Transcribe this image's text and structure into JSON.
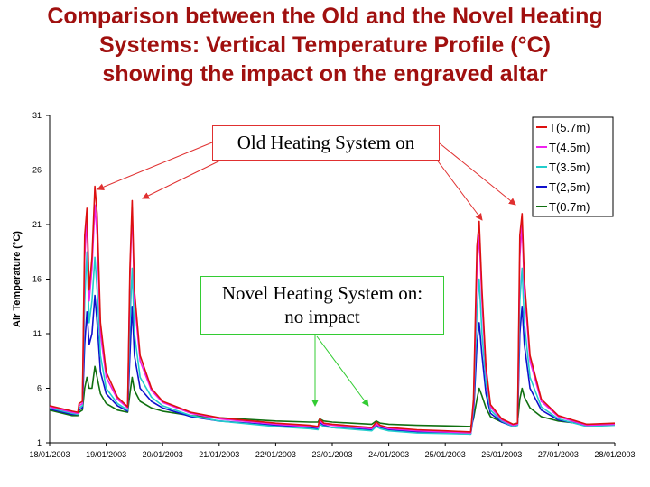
{
  "title": {
    "line1": "Comparison between the Old and the Novel Heating",
    "line2": "Systems: Vertical Temperature Profile (°C)",
    "line3": "showing the impact on the engraved altar"
  },
  "annotations": {
    "old": "Old Heating System on",
    "novel_line1": "Novel Heating System on:",
    "novel_line2": "no impact"
  },
  "colors": {
    "title": "#a0100f",
    "old_box_border": "#e03030",
    "old_arrow": "#e03030",
    "novel_box_border": "#33cc33",
    "novel_arrow": "#33cc33"
  },
  "chart_data": {
    "type": "line",
    "ylabel": "Air Temperature (°C)",
    "ylim": [
      1,
      31
    ],
    "yticks": [
      "1",
      "6",
      "11",
      "16",
      "21",
      "26",
      "31"
    ],
    "xlim": [
      0,
      10
    ],
    "xticks": [
      "18/01/2003",
      "19/01/2003",
      "20/01/2003",
      "21/01/2003",
      "22/01/2003",
      "23/01/2003",
      "24/01/2003",
      "25/01/2003",
      "26/01/2003",
      "27/01/2003",
      "28/01/2003"
    ],
    "grid": false,
    "legend_position": "top-right",
    "series": [
      {
        "name": "T(5.7m)",
        "color": "#dd1010",
        "points": [
          [
            0,
            4.4
          ],
          [
            0.4,
            3.9
          ],
          [
            0.5,
            3.8
          ],
          [
            0.52,
            4.6
          ],
          [
            0.58,
            4.8
          ],
          [
            0.62,
            20
          ],
          [
            0.66,
            22.5
          ],
          [
            0.7,
            15
          ],
          [
            0.75,
            18
          ],
          [
            0.8,
            24.5
          ],
          [
            0.84,
            22
          ],
          [
            0.9,
            12
          ],
          [
            1,
            7.5
          ],
          [
            1.2,
            5.2
          ],
          [
            1.38,
            4.3
          ],
          [
            1.42,
            17
          ],
          [
            1.46,
            23.2
          ],
          [
            1.5,
            15
          ],
          [
            1.6,
            9
          ],
          [
            1.8,
            6
          ],
          [
            2,
            4.8
          ],
          [
            2.5,
            3.8
          ],
          [
            3,
            3.3
          ],
          [
            4,
            2.8
          ],
          [
            4.6,
            2.6
          ],
          [
            4.75,
            2.5
          ],
          [
            4.78,
            3.2
          ],
          [
            4.85,
            2.8
          ],
          [
            5,
            2.7
          ],
          [
            5.7,
            2.4
          ],
          [
            5.78,
            2.9
          ],
          [
            5.85,
            2.6
          ],
          [
            6,
            2.4
          ],
          [
            6.5,
            2.2
          ],
          [
            7,
            2.1
          ],
          [
            7.45,
            2.0
          ],
          [
            7.5,
            5
          ],
          [
            7.56,
            19
          ],
          [
            7.6,
            21.3
          ],
          [
            7.65,
            15
          ],
          [
            7.72,
            8
          ],
          [
            7.8,
            4.5
          ],
          [
            8,
            3.2
          ],
          [
            8.2,
            2.7
          ],
          [
            8.28,
            2.8
          ],
          [
            8.32,
            20
          ],
          [
            8.36,
            22
          ],
          [
            8.4,
            16
          ],
          [
            8.5,
            9
          ],
          [
            8.7,
            5
          ],
          [
            9,
            3.5
          ],
          [
            9.5,
            2.7
          ],
          [
            10,
            2.8
          ]
        ]
      },
      {
        "name": "T(4.5m)",
        "color": "#ee22ee",
        "points": [
          [
            0,
            4.3
          ],
          [
            0.4,
            3.8
          ],
          [
            0.5,
            3.7
          ],
          [
            0.52,
            4.4
          ],
          [
            0.58,
            4.6
          ],
          [
            0.62,
            18
          ],
          [
            0.66,
            21.5
          ],
          [
            0.7,
            14
          ],
          [
            0.75,
            17
          ],
          [
            0.8,
            22.8
          ],
          [
            0.84,
            20
          ],
          [
            0.9,
            11
          ],
          [
            1,
            7
          ],
          [
            1.2,
            5
          ],
          [
            1.38,
            4.2
          ],
          [
            1.42,
            16
          ],
          [
            1.46,
            22.5
          ],
          [
            1.5,
            14
          ],
          [
            1.6,
            8.5
          ],
          [
            1.8,
            5.8
          ],
          [
            2,
            4.7
          ],
          [
            2.5,
            3.7
          ],
          [
            3,
            3.2
          ],
          [
            4,
            2.7
          ],
          [
            4.6,
            2.5
          ],
          [
            4.75,
            2.4
          ],
          [
            4.78,
            3.0
          ],
          [
            4.85,
            2.7
          ],
          [
            5,
            2.6
          ],
          [
            5.7,
            2.3
          ],
          [
            5.78,
            2.7
          ],
          [
            5.85,
            2.5
          ],
          [
            6,
            2.3
          ],
          [
            6.5,
            2.1
          ],
          [
            7,
            2.0
          ],
          [
            7.45,
            1.9
          ],
          [
            7.5,
            4.5
          ],
          [
            7.56,
            17
          ],
          [
            7.6,
            20
          ],
          [
            7.65,
            14
          ],
          [
            7.72,
            7.5
          ],
          [
            7.8,
            4.3
          ],
          [
            8,
            3.1
          ],
          [
            8.2,
            2.6
          ],
          [
            8.28,
            2.7
          ],
          [
            8.32,
            18
          ],
          [
            8.36,
            21
          ],
          [
            8.4,
            15
          ],
          [
            8.5,
            8.5
          ],
          [
            8.7,
            4.8
          ],
          [
            9,
            3.4
          ],
          [
            9.5,
            2.6
          ],
          [
            10,
            2.7
          ]
        ]
      },
      {
        "name": "T(3.5m)",
        "color": "#22cccc",
        "points": [
          [
            0,
            4.2
          ],
          [
            0.4,
            3.7
          ],
          [
            0.5,
            3.6
          ],
          [
            0.52,
            4.2
          ],
          [
            0.58,
            4.4
          ],
          [
            0.62,
            14
          ],
          [
            0.66,
            18.5
          ],
          [
            0.7,
            12
          ],
          [
            0.75,
            14
          ],
          [
            0.8,
            18
          ],
          [
            0.84,
            15
          ],
          [
            0.9,
            9
          ],
          [
            1,
            6
          ],
          [
            1.2,
            4.6
          ],
          [
            1.38,
            4.0
          ],
          [
            1.42,
            12
          ],
          [
            1.46,
            17
          ],
          [
            1.5,
            11
          ],
          [
            1.6,
            7
          ],
          [
            1.8,
            5.2
          ],
          [
            2,
            4.4
          ],
          [
            2.5,
            3.5
          ],
          [
            3,
            3.0
          ],
          [
            4,
            2.5
          ],
          [
            4.6,
            2.3
          ],
          [
            4.75,
            2.2
          ],
          [
            4.78,
            2.7
          ],
          [
            4.85,
            2.5
          ],
          [
            5,
            2.4
          ],
          [
            5.7,
            2.1
          ],
          [
            5.78,
            2.5
          ],
          [
            5.85,
            2.3
          ],
          [
            6,
            2.1
          ],
          [
            6.5,
            1.9
          ],
          [
            7,
            1.85
          ],
          [
            7.45,
            1.8
          ],
          [
            7.5,
            4
          ],
          [
            7.56,
            13
          ],
          [
            7.6,
            16
          ],
          [
            7.65,
            11
          ],
          [
            7.72,
            6.5
          ],
          [
            7.8,
            4
          ],
          [
            8,
            3.0
          ],
          [
            8.2,
            2.5
          ],
          [
            8.28,
            2.6
          ],
          [
            8.32,
            14
          ],
          [
            8.36,
            17
          ],
          [
            8.4,
            12
          ],
          [
            8.5,
            7
          ],
          [
            8.7,
            4.3
          ],
          [
            9,
            3.2
          ],
          [
            9.5,
            2.5
          ],
          [
            10,
            2.6
          ]
        ]
      },
      {
        "name": "T(2,5m)",
        "color": "#1010cc",
        "points": [
          [
            0,
            4.1
          ],
          [
            0.4,
            3.6
          ],
          [
            0.5,
            3.6
          ],
          [
            0.52,
            4.0
          ],
          [
            0.58,
            4.2
          ],
          [
            0.62,
            10
          ],
          [
            0.66,
            13
          ],
          [
            0.7,
            10
          ],
          [
            0.75,
            11
          ],
          [
            0.8,
            14.5
          ],
          [
            0.84,
            12
          ],
          [
            0.9,
            7.5
          ],
          [
            1,
            5.5
          ],
          [
            1.2,
            4.4
          ],
          [
            1.38,
            3.9
          ],
          [
            1.42,
            9
          ],
          [
            1.46,
            13.5
          ],
          [
            1.5,
            9
          ],
          [
            1.6,
            6
          ],
          [
            1.8,
            4.8
          ],
          [
            2,
            4.2
          ],
          [
            2.5,
            3.4
          ],
          [
            3,
            3.0
          ],
          [
            4,
            2.6
          ],
          [
            4.6,
            2.4
          ],
          [
            4.75,
            2.3
          ],
          [
            4.78,
            2.9
          ],
          [
            4.85,
            2.6
          ],
          [
            5,
            2.4
          ],
          [
            5.7,
            2.2
          ],
          [
            5.78,
            2.6
          ],
          [
            5.85,
            2.4
          ],
          [
            6,
            2.2
          ],
          [
            6.5,
            2.0
          ],
          [
            7,
            1.9
          ],
          [
            7.45,
            1.8
          ],
          [
            7.5,
            3.5
          ],
          [
            7.56,
            10
          ],
          [
            7.6,
            12
          ],
          [
            7.65,
            9
          ],
          [
            7.72,
            5.5
          ],
          [
            7.8,
            3.7
          ],
          [
            8,
            2.9
          ],
          [
            8.2,
            2.5
          ],
          [
            8.28,
            2.6
          ],
          [
            8.32,
            11
          ],
          [
            8.36,
            13.5
          ],
          [
            8.4,
            10
          ],
          [
            8.5,
            6
          ],
          [
            8.7,
            4
          ],
          [
            9,
            3.1
          ],
          [
            9.5,
            2.6
          ],
          [
            10,
            2.7
          ]
        ]
      },
      {
        "name": "T(0.7m)",
        "color": "#107010",
        "points": [
          [
            0,
            4.0
          ],
          [
            0.4,
            3.5
          ],
          [
            0.5,
            3.5
          ],
          [
            0.52,
            3.8
          ],
          [
            0.58,
            4.0
          ],
          [
            0.62,
            6
          ],
          [
            0.66,
            7
          ],
          [
            0.7,
            6
          ],
          [
            0.75,
            6
          ],
          [
            0.8,
            8
          ],
          [
            0.84,
            7
          ],
          [
            0.9,
            5.5
          ],
          [
            1,
            4.6
          ],
          [
            1.2,
            4.0
          ],
          [
            1.38,
            3.8
          ],
          [
            1.42,
            5.5
          ],
          [
            1.46,
            7
          ],
          [
            1.5,
            5.8
          ],
          [
            1.6,
            4.8
          ],
          [
            1.8,
            4.2
          ],
          [
            2,
            3.9
          ],
          [
            2.5,
            3.5
          ],
          [
            3,
            3.3
          ],
          [
            4,
            3.0
          ],
          [
            4.6,
            2.9
          ],
          [
            4.75,
            2.9
          ],
          [
            4.78,
            3.2
          ],
          [
            4.85,
            3.0
          ],
          [
            5,
            2.9
          ],
          [
            5.7,
            2.7
          ],
          [
            5.78,
            3.0
          ],
          [
            5.85,
            2.8
          ],
          [
            6,
            2.7
          ],
          [
            6.5,
            2.6
          ],
          [
            7,
            2.55
          ],
          [
            7.45,
            2.5
          ],
          [
            7.5,
            3.2
          ],
          [
            7.56,
            5
          ],
          [
            7.6,
            6
          ],
          [
            7.65,
            5.3
          ],
          [
            7.72,
            4.2
          ],
          [
            7.8,
            3.4
          ],
          [
            8,
            2.9
          ],
          [
            8.2,
            2.7
          ],
          [
            8.28,
            2.8
          ],
          [
            8.32,
            5
          ],
          [
            8.36,
            6
          ],
          [
            8.4,
            5.2
          ],
          [
            8.5,
            4.2
          ],
          [
            8.7,
            3.4
          ],
          [
            9,
            3.0
          ],
          [
            9.5,
            2.7
          ],
          [
            10,
            2.7
          ]
        ]
      }
    ]
  }
}
